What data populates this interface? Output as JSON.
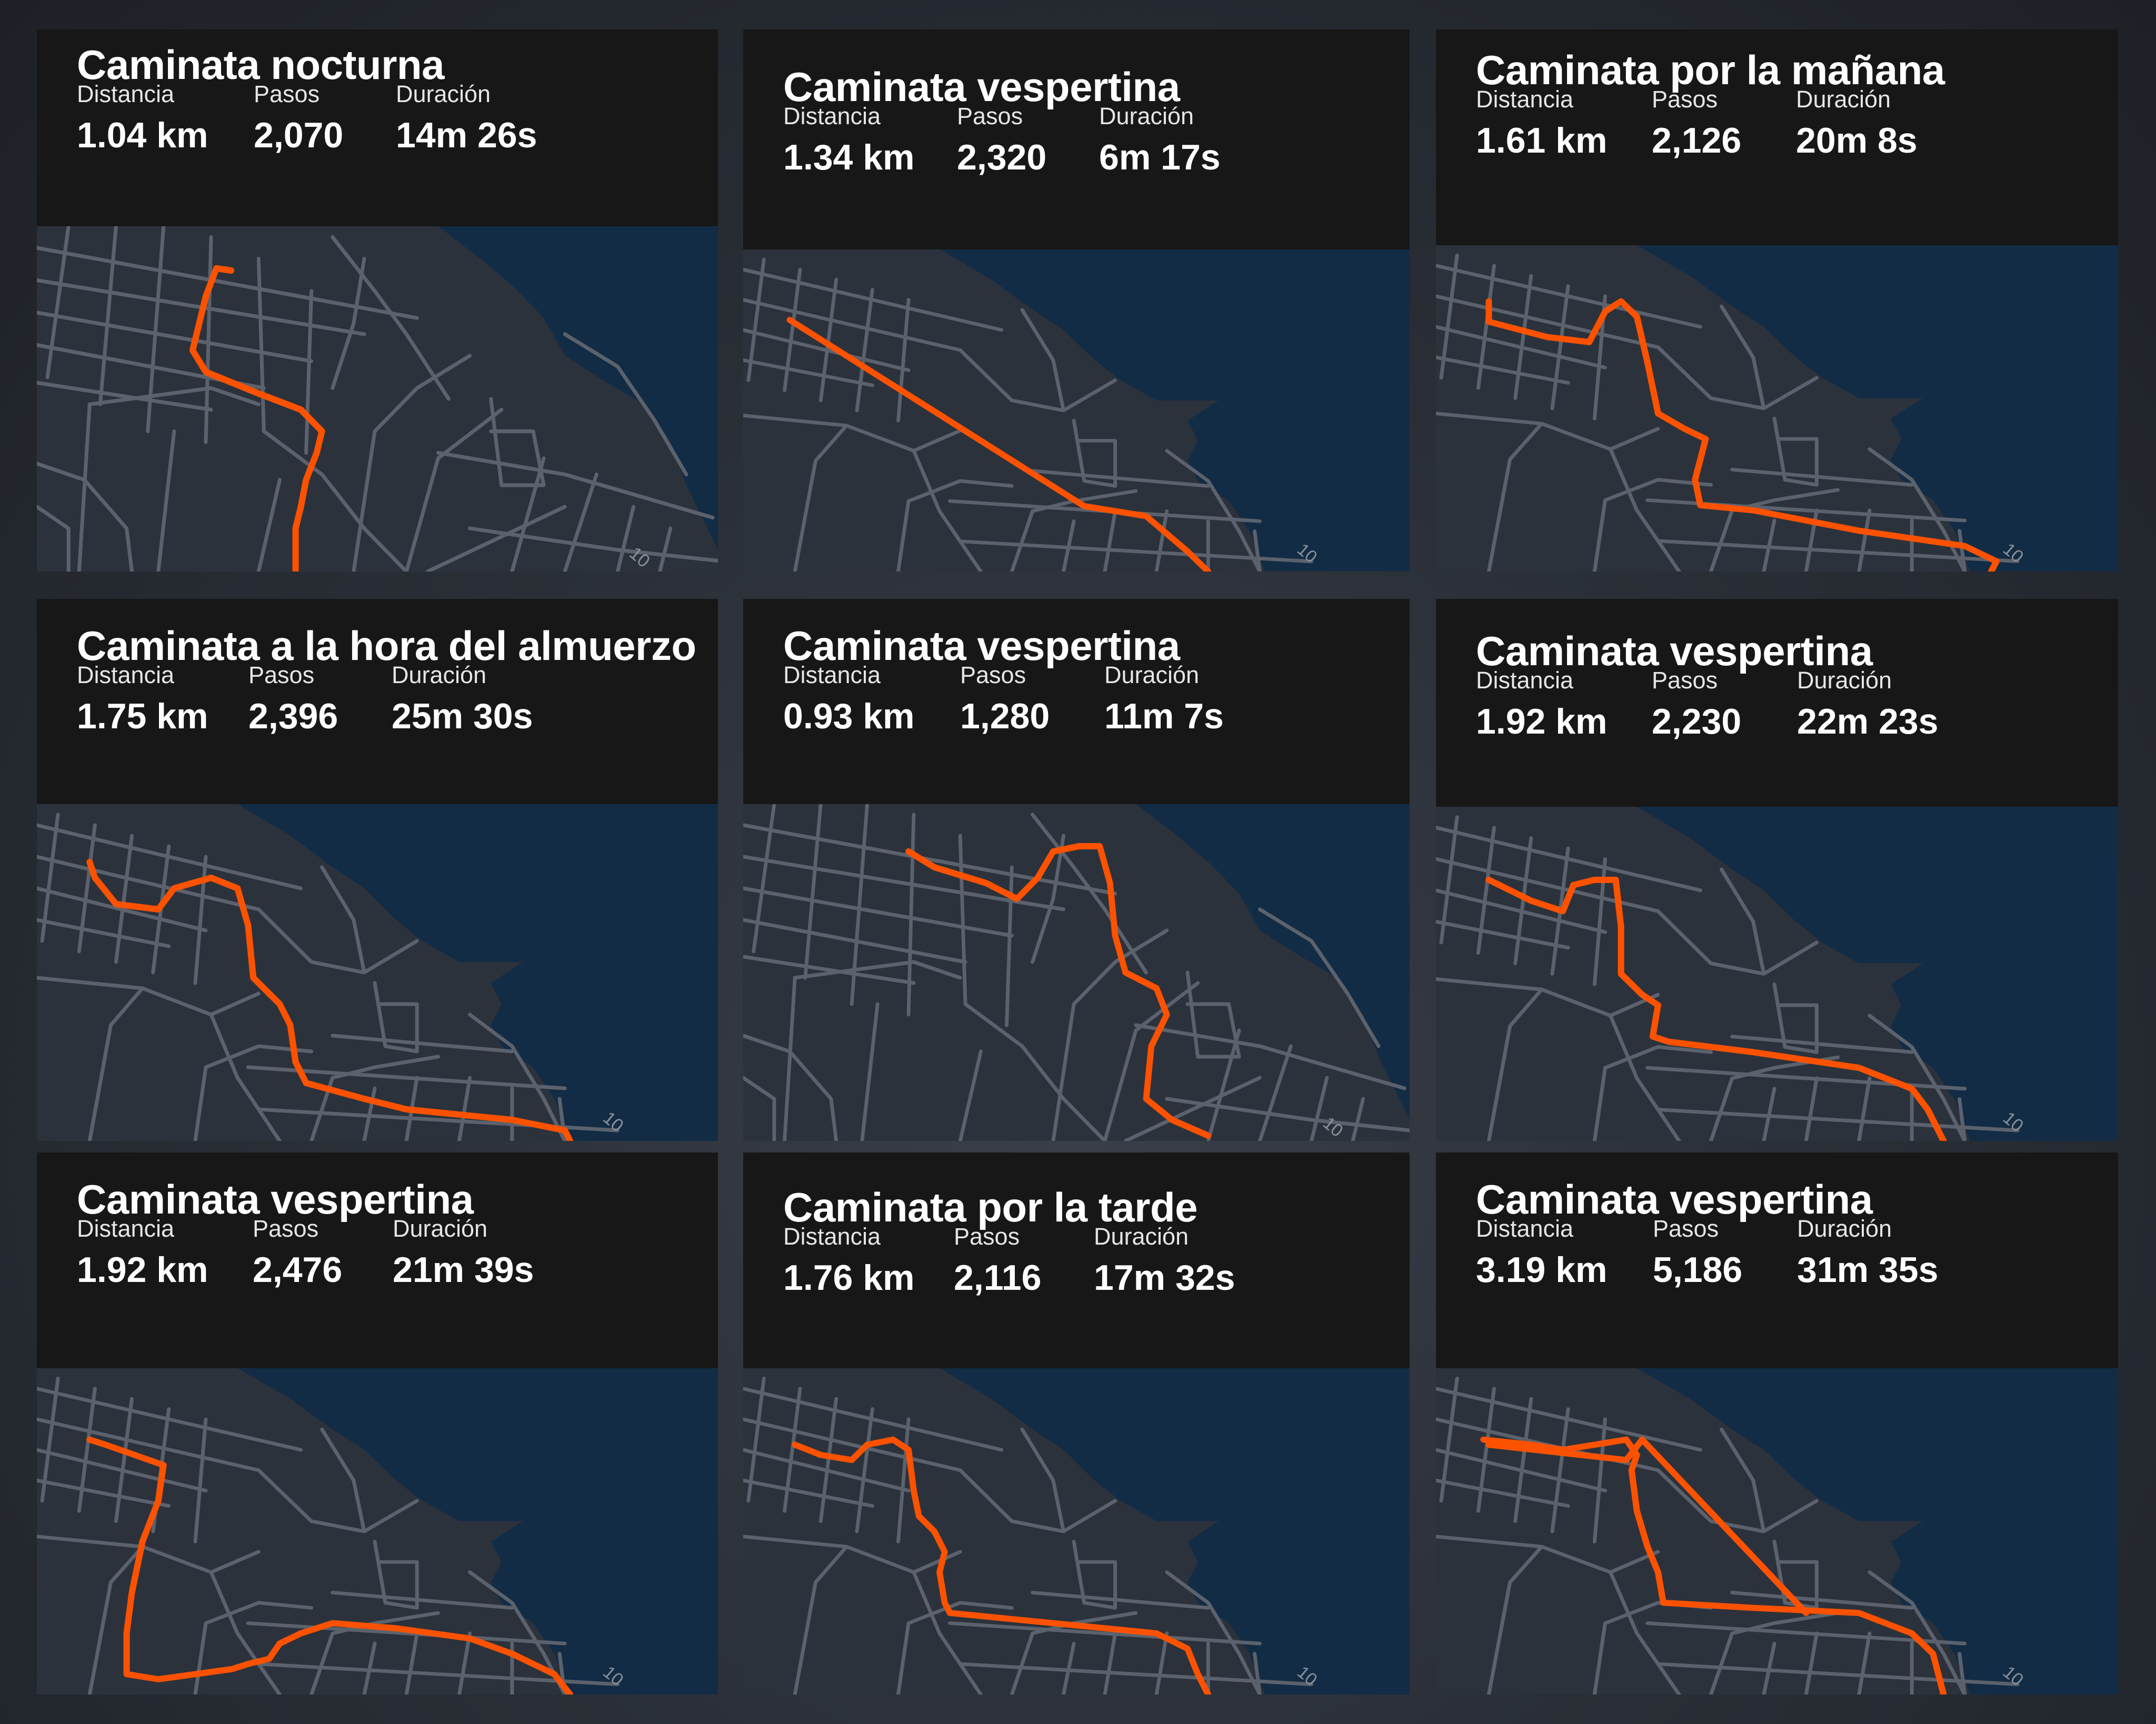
{
  "stat_labels": {
    "distance": "Distancia",
    "steps": "Pasos",
    "duration": "Duración"
  },
  "road_marker": "10",
  "colors": {
    "route": "#fc5200",
    "water": "#132c45",
    "land": "#2c323c",
    "road": "#5b626d",
    "header": "#171717"
  },
  "activities": [
    {
      "title": "Caminata nocturna",
      "distance": "1.04 km",
      "steps": "2,070",
      "duration": "14m 26s"
    },
    {
      "title": "Caminata vespertina",
      "distance": "1.34 km",
      "steps": "2,320",
      "duration": "6m 17s"
    },
    {
      "title": "Caminata por la mañana",
      "distance": "1.61 km",
      "steps": "2,126",
      "duration": "20m 8s"
    },
    {
      "title": "Caminata a la hora del almuerzo",
      "distance": "1.75 km",
      "steps": "2,396",
      "duration": "25m 30s"
    },
    {
      "title": "Caminata vespertina",
      "distance": "0.93 km",
      "steps": "1,280",
      "duration": "11m 7s"
    },
    {
      "title": "Caminata vespertina",
      "distance": "1.92 km",
      "steps": "2,230",
      "duration": "22m 23s"
    },
    {
      "title": "Caminata vespertina",
      "distance": "1.92 km",
      "steps": "2,476",
      "duration": "21m 39s"
    },
    {
      "title": "Caminata por la tarde",
      "distance": "1.76 km",
      "steps": "2,116",
      "duration": "17m 32s"
    },
    {
      "title": "Caminata vespertina",
      "distance": "3.19 km",
      "steps": "5,186",
      "duration": "31m 35s"
    }
  ]
}
